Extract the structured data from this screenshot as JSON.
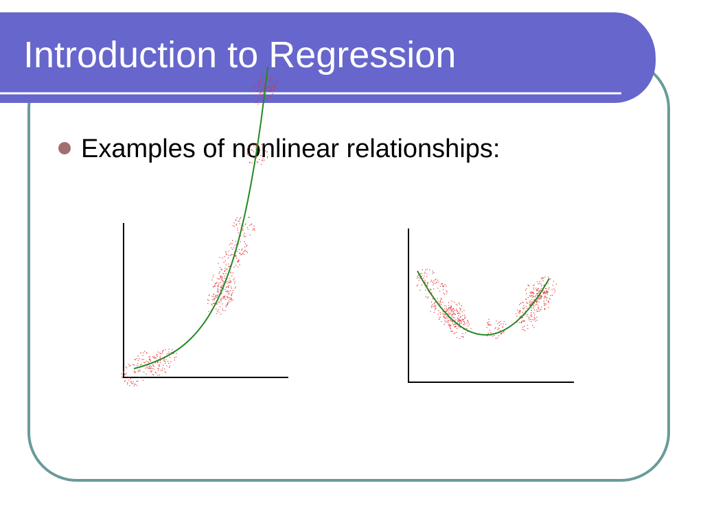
{
  "header": {
    "title": "Introduction to Regression"
  },
  "body": {
    "bullets": [
      "Examples of nonlinear relationships:"
    ]
  }
}
